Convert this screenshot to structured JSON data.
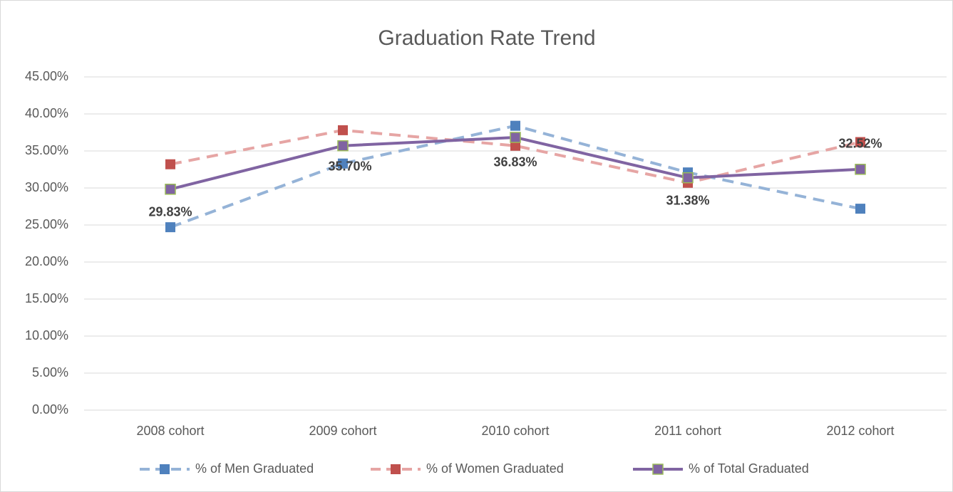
{
  "chart_data": {
    "type": "line",
    "title": "Graduation Rate Trend",
    "categories": [
      "2008 cohort",
      "2009 cohort",
      "2010 cohort",
      "2011 cohort",
      "2012 cohort"
    ],
    "series": [
      {
        "name": "% of Men Graduated",
        "color": "#4f81bd",
        "values": [
          24.7,
          33.3,
          38.4,
          32.1,
          27.2
        ]
      },
      {
        "name": "% of Women Graduated",
        "color": "#c0504d",
        "values": [
          33.2,
          37.8,
          35.7,
          30.7,
          36.2
        ]
      },
      {
        "name": "% of Total Graduated",
        "color": "#8064a2",
        "values": [
          29.83,
          35.7,
          36.83,
          31.38,
          32.52
        ],
        "value_labels": [
          "29.83%",
          "35.70%",
          "36.83%",
          "31.38%",
          "32.52%"
        ]
      }
    ],
    "ylim": [
      0,
      45
    ],
    "yticks": [
      {
        "value": 0,
        "label": "0.00%"
      },
      {
        "value": 5,
        "label": "5.00%"
      },
      {
        "value": 10,
        "label": "10.00%"
      },
      {
        "value": 15,
        "label": "15.00%"
      },
      {
        "value": 20,
        "label": "20.00%"
      },
      {
        "value": 25,
        "label": "25.00%"
      },
      {
        "value": 30,
        "label": "30.00%"
      },
      {
        "value": 35,
        "label": "35.00%"
      },
      {
        "value": 40,
        "label": "40.00%"
      },
      {
        "value": 45,
        "label": "45.00%"
      }
    ],
    "grid": true,
    "legend": "bottom"
  }
}
